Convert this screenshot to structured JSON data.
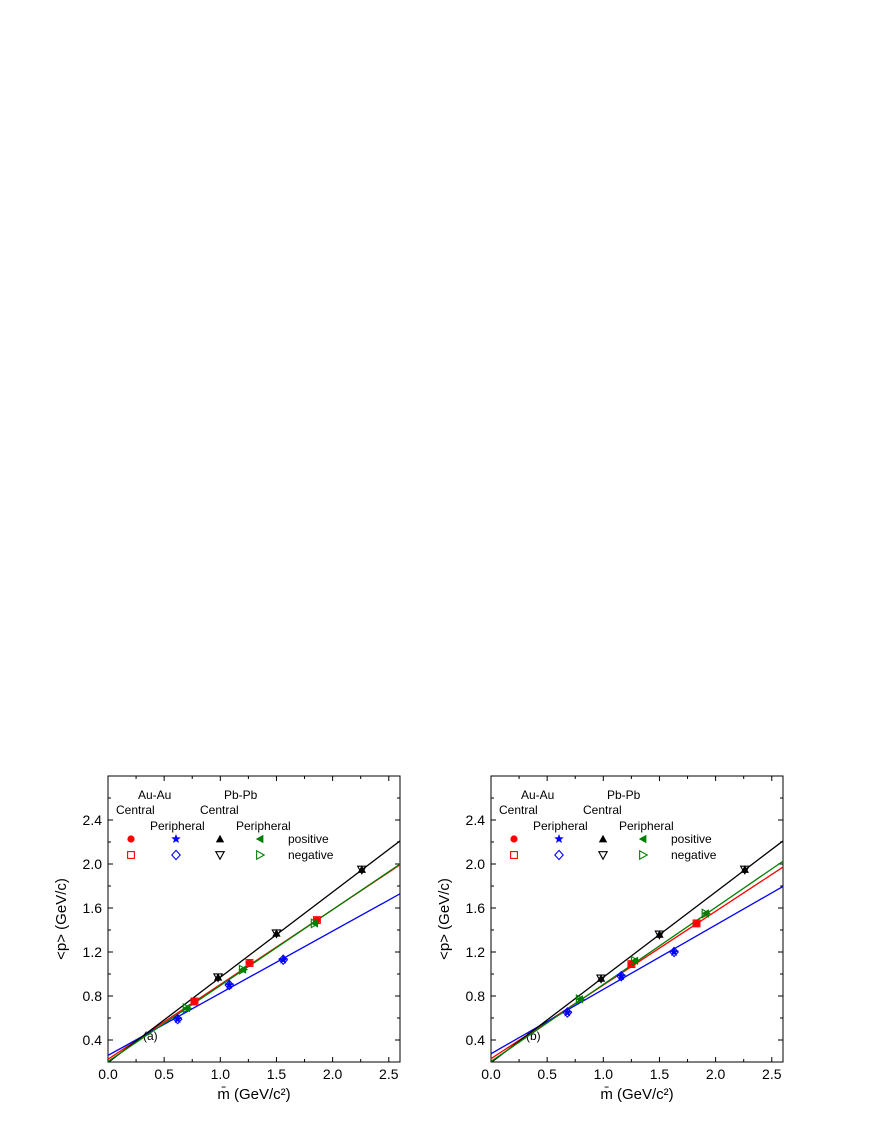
{
  "chart_data": [
    {
      "type": "scatter",
      "panel_label": "(a)",
      "xlabel": "m̄ (GeV/c²)",
      "ylabel": "<p> (GeV/c)",
      "xlim": [
        0.0,
        2.6
      ],
      "ylim": [
        0.2,
        2.8
      ],
      "xticks": [
        "0.0",
        "0.5",
        "1.0",
        "1.5",
        "2.0",
        "2.5"
      ],
      "yticks": [
        "0.4",
        "0.8",
        "1.2",
        "1.6",
        "2.0",
        "2.4"
      ],
      "legend": {
        "group_labels": [
          "Au-Au",
          "Pb-Pb"
        ],
        "centrality_labels": [
          "Central",
          "Peripheral",
          "Central",
          "Peripheral"
        ],
        "row_labels": [
          "positive",
          "negative"
        ]
      },
      "series": [
        {
          "name": "Au-Au Central",
          "color": "#ff0000",
          "positive_marker": "circle",
          "negative_marker": "open-square",
          "x": [
            0.77,
            1.26,
            1.86
          ],
          "y": [
            0.75,
            1.1,
            1.49
          ],
          "fit": {
            "intercept": 0.225,
            "slope": 0.68
          }
        },
        {
          "name": "Au-Au Peripheral",
          "color": "#0000ff",
          "positive_marker": "star",
          "negative_marker": "open-diamond",
          "x": [
            0.62,
            1.08,
            1.56
          ],
          "y": [
            0.59,
            0.9,
            1.13
          ],
          "fit": {
            "intercept": 0.26,
            "slope": 0.565
          }
        },
        {
          "name": "Pb-Pb Central",
          "color": "#000000",
          "positive_marker": "triangle-up",
          "negative_marker": "open-triangle-down",
          "x": [
            0.98,
            1.5,
            2.26
          ],
          "y": [
            0.97,
            1.37,
            1.95
          ],
          "fit": {
            "intercept": 0.195,
            "slope": 0.775
          }
        },
        {
          "name": "Pb-Pb Peripheral",
          "color": "#008000",
          "positive_marker": "triangle-left",
          "negative_marker": "open-triangle-right",
          "x": [
            0.7,
            1.2,
            1.84
          ],
          "y": [
            0.69,
            1.04,
            1.46
          ],
          "fit": {
            "intercept": 0.205,
            "slope": 0.69
          }
        }
      ]
    },
    {
      "type": "scatter",
      "panel_label": "(b)",
      "xlabel": "m̄ (GeV/c²)",
      "ylabel": "<p> (GeV/c)",
      "xlim": [
        0.0,
        2.6
      ],
      "ylim": [
        0.2,
        2.8
      ],
      "xticks": [
        "0.0",
        "0.5",
        "1.0",
        "1.5",
        "2.0",
        "2.5"
      ],
      "yticks": [
        "0.4",
        "0.8",
        "1.2",
        "1.6",
        "2.0",
        "2.4"
      ],
      "legend": {
        "group_labels": [
          "Au-Au",
          "Pb-Pb"
        ],
        "centrality_labels": [
          "Central",
          "Peripheral",
          "Central",
          "Peripheral"
        ],
        "row_labels": [
          "positive",
          "negative"
        ]
      },
      "series": [
        {
          "name": "Au-Au Central",
          "color": "#ff0000",
          "positive_marker": "circle",
          "negative_marker": "open-square",
          "x": [
            1.25,
            1.83
          ],
          "y": [
            1.09,
            1.46
          ],
          "fit": {
            "intercept": 0.23,
            "slope": 0.67
          }
        },
        {
          "name": "Au-Au Peripheral",
          "color": "#0000ff",
          "positive_marker": "star",
          "negative_marker": "open-diamond",
          "x": [
            0.68,
            1.16,
            1.63
          ],
          "y": [
            0.65,
            0.98,
            1.2
          ],
          "fit": {
            "intercept": 0.275,
            "slope": 0.585
          }
        },
        {
          "name": "Pb-Pb Central",
          "color": "#000000",
          "positive_marker": "triangle-up",
          "negative_marker": "open-triangle-down",
          "x": [
            0.98,
            1.5,
            2.26
          ],
          "y": [
            0.96,
            1.36,
            1.95
          ],
          "fit": {
            "intercept": 0.195,
            "slope": 0.775
          }
        },
        {
          "name": "Pb-Pb Peripheral",
          "color": "#008000",
          "positive_marker": "triangle-left",
          "negative_marker": "open-triangle-right",
          "x": [
            0.79,
            1.28,
            1.91
          ],
          "y": [
            0.77,
            1.12,
            1.55
          ],
          "fit": {
            "intercept": 0.205,
            "slope": 0.7
          }
        }
      ]
    }
  ]
}
